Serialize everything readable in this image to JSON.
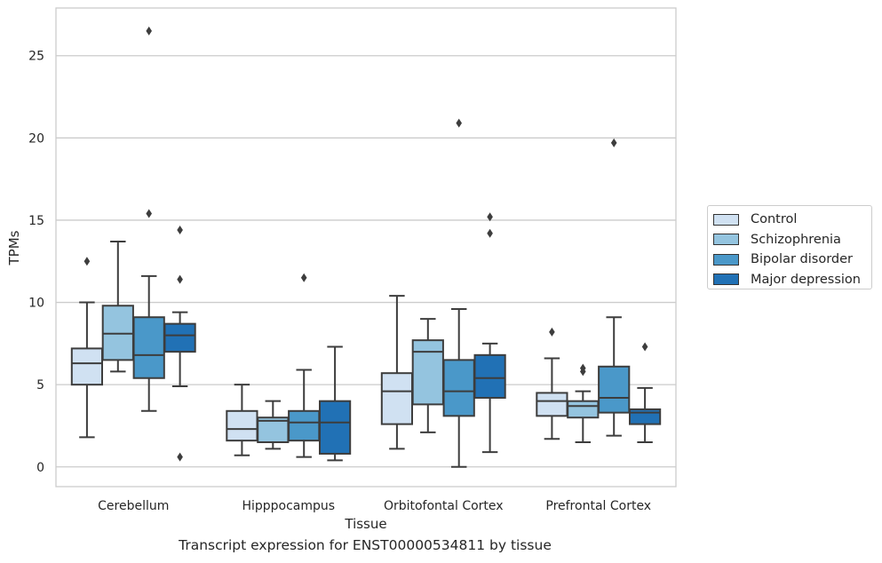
{
  "chart_data": {
    "type": "box",
    "title": "",
    "xlabel": "Tissue",
    "ylabel": "TPMs",
    "caption": "Transcript expression for ENST00000534811 by tissue",
    "ylim": [
      -1.2,
      27.9
    ],
    "yticks": [
      "0",
      "5",
      "10",
      "15",
      "20",
      "25"
    ],
    "grid": "horizontal",
    "legend_position": "right",
    "categories": [
      "Cerebellum",
      "Hipppocampus",
      "Orbitofontal Cortex",
      "Prefrontal Cortex"
    ],
    "series": [
      {
        "name": "Control",
        "color": "#d0e1f2",
        "boxes": [
          {
            "whislo": 1.8,
            "q1": 5.0,
            "med": 6.3,
            "q3": 7.2,
            "whishi": 10.0,
            "fliers": [
              12.5
            ]
          },
          {
            "whislo": 0.7,
            "q1": 1.6,
            "med": 2.3,
            "q3": 3.4,
            "whishi": 5.0,
            "fliers": []
          },
          {
            "whislo": 1.1,
            "q1": 2.6,
            "med": 4.6,
            "q3": 5.7,
            "whishi": 10.4,
            "fliers": []
          },
          {
            "whislo": 1.7,
            "q1": 3.1,
            "med": 4.0,
            "q3": 4.5,
            "whishi": 6.6,
            "fliers": [
              8.2
            ]
          }
        ]
      },
      {
        "name": "Schizophrenia",
        "color": "#94c4df",
        "boxes": [
          {
            "whislo": 5.8,
            "q1": 6.5,
            "med": 8.1,
            "q3": 9.8,
            "whishi": 13.7,
            "fliers": []
          },
          {
            "whislo": 1.1,
            "q1": 1.5,
            "med": 2.8,
            "q3": 3.0,
            "whishi": 4.0,
            "fliers": []
          },
          {
            "whislo": 2.1,
            "q1": 3.8,
            "med": 7.0,
            "q3": 7.7,
            "whishi": 9.0,
            "fliers": []
          },
          {
            "whislo": 1.5,
            "q1": 3.0,
            "med": 3.7,
            "q3": 4.0,
            "whishi": 4.6,
            "fliers": [
              5.8,
              6.0
            ]
          }
        ]
      },
      {
        "name": "Bipolar disorder",
        "color": "#4a98c9",
        "boxes": [
          {
            "whislo": 3.4,
            "q1": 5.4,
            "med": 6.8,
            "q3": 9.1,
            "whishi": 11.6,
            "fliers": [
              15.4,
              26.5
            ]
          },
          {
            "whislo": 0.6,
            "q1": 1.6,
            "med": 2.7,
            "q3": 3.4,
            "whishi": 5.9,
            "fliers": [
              11.5
            ]
          },
          {
            "whislo": 0.0,
            "q1": 3.1,
            "med": 4.6,
            "q3": 6.5,
            "whishi": 9.6,
            "fliers": [
              20.9
            ]
          },
          {
            "whislo": 1.9,
            "q1": 3.3,
            "med": 4.2,
            "q3": 6.1,
            "whishi": 9.1,
            "fliers": [
              19.7
            ]
          }
        ]
      },
      {
        "name": "Major depression",
        "color": "#2171b5",
        "boxes": [
          {
            "whislo": 4.9,
            "q1": 7.0,
            "med": 8.0,
            "q3": 8.7,
            "whishi": 9.4,
            "fliers": [
              0.6,
              11.4,
              14.4
            ]
          },
          {
            "whislo": 0.4,
            "q1": 0.8,
            "med": 2.7,
            "q3": 4.0,
            "whishi": 7.3,
            "fliers": []
          },
          {
            "whislo": 0.9,
            "q1": 4.2,
            "med": 5.4,
            "q3": 6.8,
            "whishi": 7.5,
            "fliers": [
              14.2,
              15.2
            ]
          },
          {
            "whislo": 1.5,
            "q1": 2.6,
            "med": 3.3,
            "q3": 3.5,
            "whishi": 4.8,
            "fliers": [
              7.3
            ]
          }
        ]
      }
    ]
  }
}
